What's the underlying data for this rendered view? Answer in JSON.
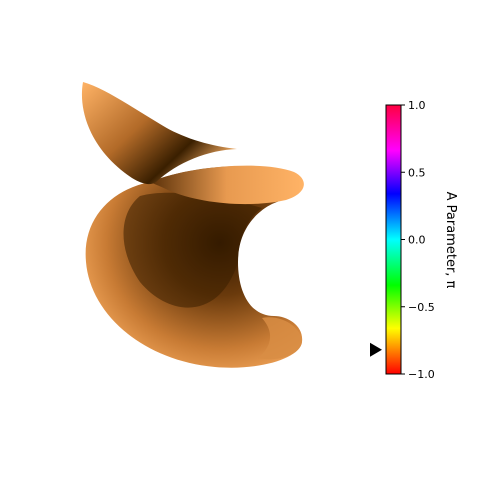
{
  "chart_data": {
    "type": "surface",
    "surface_color": "#ffb366",
    "shade_color": "#3a1f00",
    "colorbar": {
      "label": "A Parameter, π",
      "ticks": [
        {
          "value": 1.0,
          "label": "1.0"
        },
        {
          "value": 0.5,
          "label": "0.5"
        },
        {
          "value": 0.0,
          "label": "0.0"
        },
        {
          "value": -0.5,
          "label": "−0.5"
        },
        {
          "value": -1.0,
          "label": "−1.0"
        }
      ],
      "vmin": -1.0,
      "vmax": 1.0,
      "colormap": [
        "#ff0000",
        "#ffff00",
        "#00ff00",
        "#00ffff",
        "#0000ff",
        "#ff00ff",
        "#ff0040"
      ],
      "marker_value": -0.82
    }
  }
}
